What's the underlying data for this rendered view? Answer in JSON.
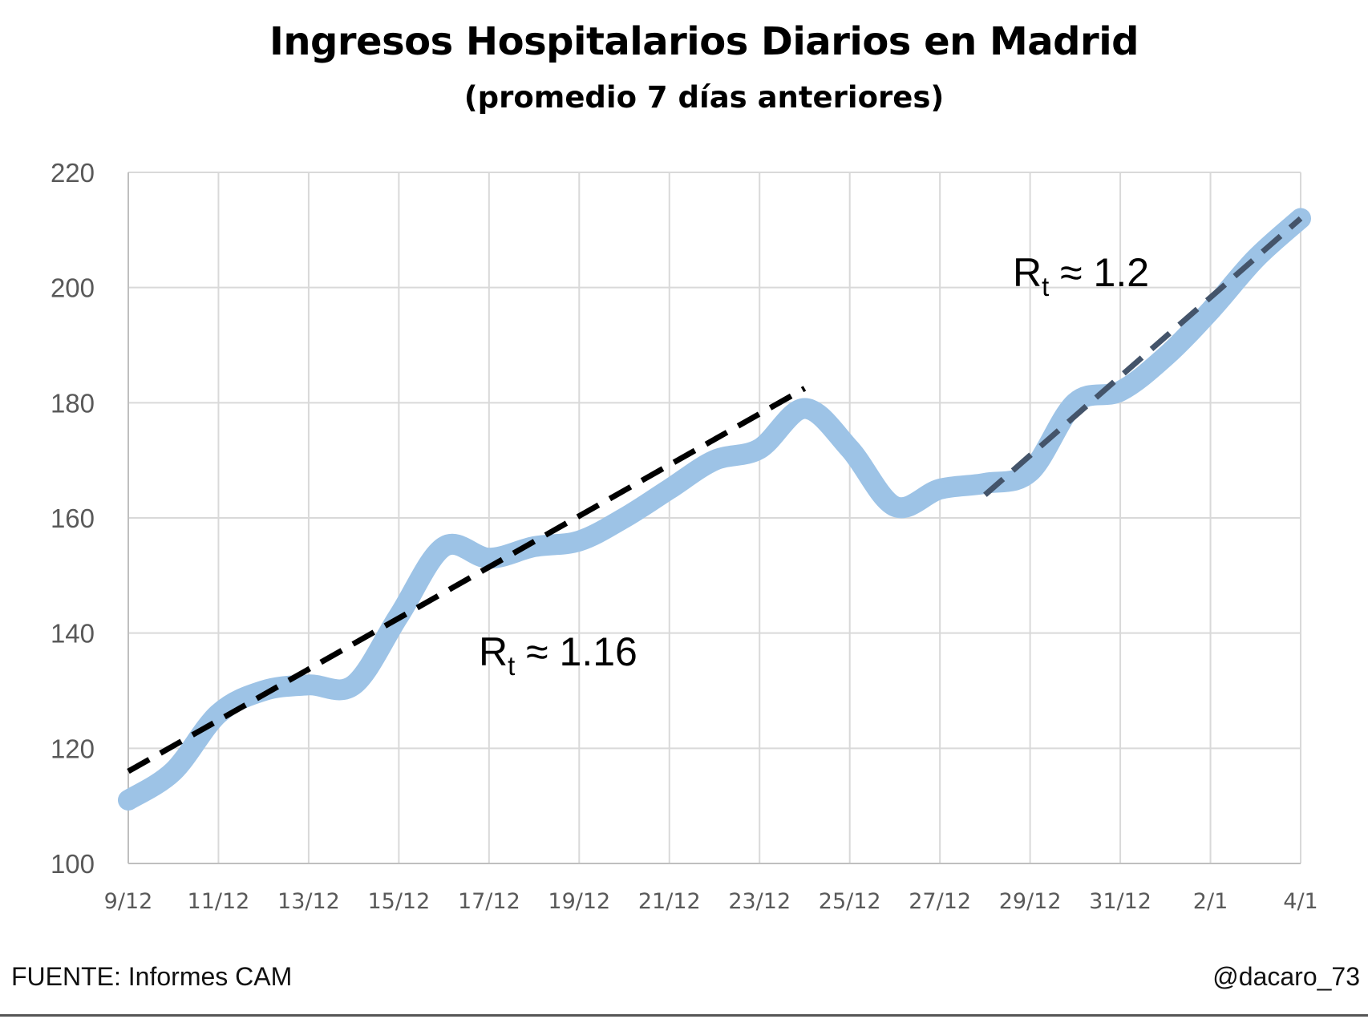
{
  "chart_data": {
    "type": "line",
    "title": "Ingresos Hospitalarios Diarios en Madrid",
    "subtitle": "(promedio 7 días anteriores)",
    "x": [
      "9/12",
      "10/12",
      "11/12",
      "12/12",
      "13/12",
      "14/12",
      "15/12",
      "16/12",
      "17/12",
      "18/12",
      "19/12",
      "20/12",
      "21/12",
      "22/12",
      "23/12",
      "24/12",
      "25/12",
      "26/12",
      "27/12",
      "28/12",
      "29/12",
      "30/12",
      "31/12",
      "1/1",
      "2/1",
      "3/1",
      "4/1"
    ],
    "x_tick_labels": [
      "9/12",
      "11/12",
      "13/12",
      "15/12",
      "17/12",
      "19/12",
      "21/12",
      "23/12",
      "25/12",
      "27/12",
      "29/12",
      "31/12",
      "2/1",
      "4/1"
    ],
    "ylim": [
      100,
      220
    ],
    "y_ticks": [
      100,
      120,
      140,
      160,
      180,
      200,
      220
    ],
    "grid": true,
    "series": [
      {
        "name": "",
        "color": "#9dc3e6",
        "values": [
          111,
          116,
          126,
          130,
          131,
          131,
          143,
          155,
          153,
          155,
          156,
          160,
          165,
          170,
          172,
          179,
          172,
          162,
          165,
          166,
          168,
          180,
          182,
          188,
          196,
          205,
          212
        ]
      }
    ],
    "trendlines": [
      {
        "color": "#000000",
        "x_start": "9/12",
        "y_start": 116,
        "x_end": "24/12",
        "y_end": 182.5
      },
      {
        "color": "#44546a",
        "x_start": "28/12",
        "y_start": 164,
        "x_end": "4/1",
        "y_end": 212
      }
    ],
    "annotations": [
      {
        "label": "R",
        "subscript": "t",
        "text": " ≈ 1.16"
      },
      {
        "label": "R",
        "subscript": "t",
        "text": " ≈ 1.2"
      }
    ]
  },
  "footer": {
    "source": "FUENTE: Informes CAM",
    "handle": "@dacaro_73"
  }
}
